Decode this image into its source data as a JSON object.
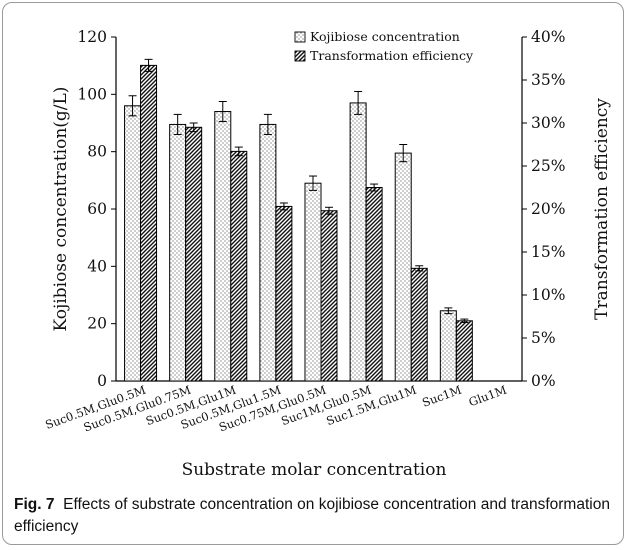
{
  "chart_data": {
    "type": "bar",
    "xlabel": "Substrate molar concentration",
    "ylabel_left": "Kojibiose concentration(g/L)",
    "ylabel_right": "Transformation efficiency",
    "ylim_left": [
      0,
      120
    ],
    "ylim_right": [
      0,
      40
    ],
    "left_ticks": [
      "0",
      "20",
      "40",
      "60",
      "80",
      "100",
      "120"
    ],
    "right_ticks": [
      "0%",
      "5%",
      "10%",
      "15%",
      "20%",
      "25%",
      "30%",
      "35%",
      "40%"
    ],
    "categories": [
      "Suc0.5M,Glu0.5M",
      "Suc0.5M,Glu0.75M",
      "Suc0.5M,Glu1M",
      "Suc0.5M,Glu1.5M",
      "Suc0.75M,Glu0.5M",
      "Suc1M,Glu0.5M",
      "Suc1.5M,Glu1M",
      "Suc1M",
      "Glu1M"
    ],
    "series": [
      {
        "name": "Kojibiose concentration",
        "axis": "left",
        "values": [
          96,
          89.5,
          94,
          89.5,
          69,
          97,
          79.5,
          24.5,
          0
        ],
        "errors": [
          3.5,
          3.5,
          3.5,
          3.5,
          2.5,
          4,
          3,
          1,
          0
        ]
      },
      {
        "name": "Transformation efficiency",
        "axis": "right",
        "values": [
          36.7,
          29.5,
          26.7,
          20.3,
          19.8,
          22.5,
          13.1,
          7.0,
          0
        ],
        "errors": [
          0.7,
          0.5,
          0.5,
          0.4,
          0.4,
          0.4,
          0.3,
          0.2,
          0
        ]
      }
    ],
    "legend_position": "top-right"
  },
  "caption": {
    "label": "Fig. 7",
    "text": "Effects of substrate concentration on kojibiose concentration and transformation efficiency"
  }
}
